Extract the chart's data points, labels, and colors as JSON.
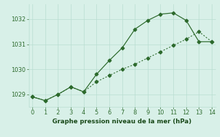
{
  "line1_x": [
    0,
    1,
    2,
    3,
    4,
    5,
    6,
    7,
    8,
    9,
    10,
    11,
    12,
    13,
    14
  ],
  "line1_y": [
    1028.9,
    1028.75,
    1029.0,
    1029.3,
    1029.1,
    1029.8,
    1030.35,
    1030.85,
    1031.6,
    1031.95,
    1032.2,
    1032.25,
    1031.95,
    1031.1,
    1031.1
  ],
  "line2_x": [
    0,
    1,
    2,
    3,
    4,
    5,
    6,
    7,
    8,
    9,
    10,
    11,
    12,
    13,
    14
  ],
  "line2_y": [
    1028.9,
    1028.75,
    1029.0,
    1029.3,
    1029.1,
    1029.5,
    1029.75,
    1030.0,
    1030.2,
    1030.45,
    1030.7,
    1030.95,
    1031.2,
    1031.5,
    1031.1
  ],
  "line1_color": "#2d6a2d",
  "line2_color": "#2d6a2d",
  "bg_color": "#d8f0e8",
  "grid_color": "#b8ddd0",
  "xlabel": "Graphe pression niveau de la mer (hPa)",
  "xlabel_color": "#1a4a1a",
  "ylim": [
    1028.5,
    1032.6
  ],
  "xlim": [
    -0.3,
    14.3
  ],
  "yticks": [
    1029,
    1030,
    1031,
    1032
  ],
  "xticks": [
    0,
    1,
    2,
    3,
    4,
    5,
    6,
    7,
    8,
    9,
    10,
    11,
    12,
    13,
    14
  ],
  "tick_color": "#2d6a2d",
  "marker": "D",
  "marker_size": 2.5
}
